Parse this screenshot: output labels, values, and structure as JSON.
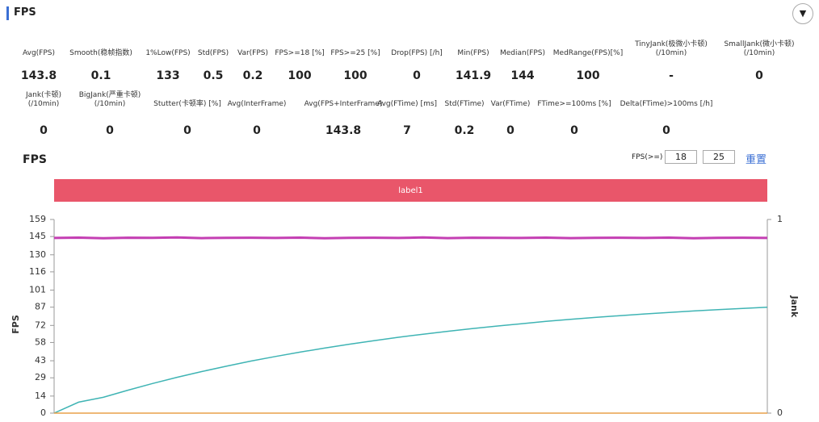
{
  "header": {
    "title": "FPS"
  },
  "stats": [
    [
      {
        "label": [
          "Avg(FPS)"
        ],
        "value": "143.8"
      },
      {
        "label": [
          "Smooth(稳帧指数)"
        ],
        "value": "0.1"
      },
      {
        "label": [
          "1%Low(FPS)"
        ],
        "value": "133"
      },
      {
        "label": [
          "Std(FPS)"
        ],
        "value": "0.5"
      },
      {
        "label": [
          "Var(FPS)"
        ],
        "value": "0.2"
      },
      {
        "label": [
          "FPS>=18 [%]"
        ],
        "value": "100"
      },
      {
        "label": [
          "FPS>=25 [%]"
        ],
        "value": "100"
      },
      {
        "label": [
          "Drop(FPS) [/h]"
        ],
        "value": "0"
      },
      {
        "label": [
          "Min(FPS)"
        ],
        "value": "141.9"
      },
      {
        "label": [
          "Median(FPS)"
        ],
        "value": "144"
      },
      {
        "label": [
          "MedRange(FPS)[%]"
        ],
        "value": "100"
      },
      {
        "label": [
          "TinyJank(极微小卡顿)",
          "(/10min)"
        ],
        "value": "-"
      },
      {
        "label": [
          "SmallJank(微小卡顿)",
          "(/10min)"
        ],
        "value": "0"
      }
    ],
    [
      {
        "label": [
          "Jank(卡顿)",
          "(/10min)"
        ],
        "value": "0"
      },
      {
        "label": [
          "BigJank(严重卡顿)",
          "(/10min)"
        ],
        "value": "0"
      },
      {
        "label": [
          "Stutter(卡顿率) [%]"
        ],
        "value": "0"
      },
      {
        "label": [
          "Avg(InterFrame)"
        ],
        "value": "0"
      },
      {
        "label": [
          "Avg(FPS+InterFrame)"
        ],
        "value": "143.8"
      },
      {
        "label": [
          "Avg(FTime) [ms]"
        ],
        "value": "7"
      },
      {
        "label": [
          "Std(FTime)"
        ],
        "value": "0.2"
      },
      {
        "label": [
          "Var(FTime)"
        ],
        "value": "0"
      },
      {
        "label": [
          "FTime>=100ms [%]"
        ],
        "value": "0"
      },
      {
        "label": [
          "Delta(FTime)>100ms [/h]"
        ],
        "value": "0"
      }
    ]
  ],
  "controls": {
    "label": "FPS(>=)",
    "inputs": [
      "18",
      "25"
    ],
    "reset": "重置"
  },
  "chart_data": {
    "type": "line",
    "title": "FPS",
    "annotations": [
      "label1"
    ],
    "ylabel": "FPS",
    "y2label": "Jank",
    "ylim": [
      0,
      159
    ],
    "yticks": [
      0,
      14,
      29,
      43,
      58,
      72,
      87,
      101,
      116,
      130,
      145,
      159
    ],
    "y2lim": [
      0,
      1
    ],
    "y2ticks": [
      0,
      1
    ],
    "series": [
      {
        "color": "#c43fb3",
        "values": [
          143.8,
          144.1,
          143.6,
          144.0,
          143.9,
          144.2,
          143.7,
          143.9,
          144.0,
          143.8,
          144.1,
          143.6,
          143.9,
          144.0,
          143.8,
          144.2,
          143.7,
          144.0,
          143.9,
          143.8,
          144.1,
          143.7,
          143.9,
          144.0,
          143.8,
          144.1,
          143.6,
          143.9,
          144.0,
          143.8
        ]
      },
      {
        "color": "#3fb4b4",
        "values": [
          0,
          9,
          13,
          18.8,
          24.3,
          29.4,
          34.1,
          38.5,
          42.7,
          46.5,
          50.1,
          53.4,
          56.6,
          59.5,
          62.3,
          64.8,
          67.2,
          69.4,
          71.5,
          73.4,
          75.3,
          77.0,
          78.6,
          80.0,
          81.4,
          82.7,
          83.9,
          85.0,
          86.0,
          87.0
        ]
      },
      {
        "color": "#e8a04a",
        "axis": "y2",
        "values": [
          0,
          0,
          0,
          0,
          0,
          0,
          0,
          0,
          0,
          0,
          0,
          0,
          0,
          0,
          0,
          0,
          0,
          0,
          0,
          0,
          0,
          0,
          0,
          0,
          0,
          0,
          0,
          0,
          0,
          0
        ]
      }
    ]
  }
}
